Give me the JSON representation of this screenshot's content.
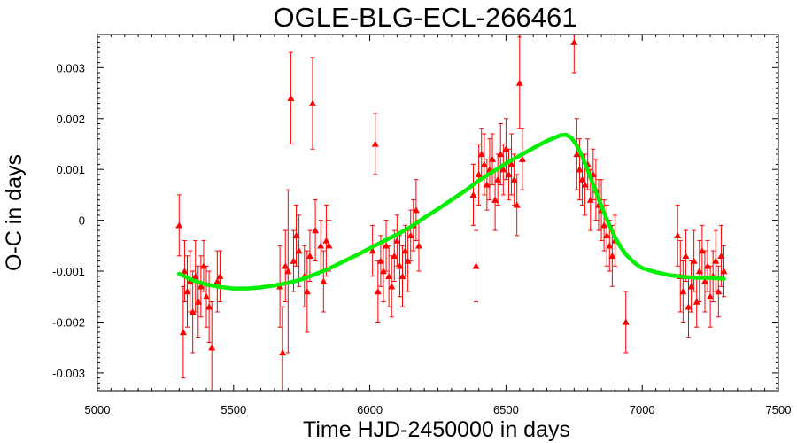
{
  "chart_data": {
    "type": "scatter",
    "title": "OGLE-BLG-ECL-266461",
    "xlabel": "Time HJD-2450000 in days",
    "ylabel": "O-C in days",
    "xlim": [
      5000,
      7500
    ],
    "ylim": [
      -0.00335,
      0.00365
    ],
    "xticks": [
      5000,
      5500,
      6000,
      6500,
      7000,
      7500
    ],
    "xtick_labels": [
      "5000",
      "5500",
      "6000",
      "6500",
      "7000",
      "7500"
    ],
    "yticks": [
      -0.003,
      -0.002,
      -0.001,
      0,
      0.001,
      0.002,
      0.003
    ],
    "ytick_labels": [
      "-0.003",
      "-0.002",
      "-0.001",
      "0",
      "0.001",
      "0.002",
      "0.003"
    ],
    "grid": false,
    "colors": {
      "points": "#ff0000",
      "fit": "#00ee00",
      "frame": "#000000"
    },
    "series": [
      {
        "kind": "points_with_errorbars",
        "marker": "triangle",
        "x": [
          5300,
          5315,
          5320,
          5330,
          5340,
          5350,
          5360,
          5370,
          5380,
          5390,
          5400,
          5410,
          5420,
          5440,
          5450,
          5670,
          5680,
          5690,
          5700,
          5710,
          5720,
          5730,
          5740,
          5760,
          5770,
          5780,
          5790,
          5800,
          5820,
          5830,
          5840,
          5850,
          6010,
          6020,
          6030,
          6040,
          6050,
          6060,
          6070,
          6080,
          6090,
          6100,
          6110,
          6120,
          6130,
          6140,
          6150,
          6160,
          6170,
          6180,
          6380,
          6390,
          6400,
          6410,
          6420,
          6430,
          6440,
          6450,
          6460,
          6470,
          6480,
          6490,
          6500,
          6510,
          6520,
          6530,
          6540,
          6550,
          6560,
          6750,
          6760,
          6770,
          6780,
          6790,
          6800,
          6810,
          6820,
          6830,
          6840,
          6850,
          6860,
          6870,
          6880,
          6890,
          6900,
          6940,
          7130,
          7140,
          7150,
          7160,
          7170,
          7180,
          7190,
          7200,
          7210,
          7220,
          7230,
          7240,
          7250,
          7260,
          7270,
          7280,
          7290,
          7300
        ],
        "y": [
          -0.0001,
          -0.0022,
          -0.001,
          -0.0014,
          -0.0012,
          -0.0018,
          -0.0011,
          -0.0016,
          -0.0013,
          -0.0009,
          -0.0015,
          -0.0017,
          -0.0025,
          -0.0012,
          -0.0011,
          -0.0013,
          -0.0026,
          -0.0009,
          -0.001,
          0.0024,
          -0.0008,
          -0.0003,
          -0.0006,
          -0.0011,
          -0.0014,
          -0.0007,
          0.0023,
          -0.0002,
          -0.0005,
          -0.0012,
          -0.0004,
          -0.0005,
          -0.0006,
          0.0015,
          -0.0014,
          -0.0008,
          -0.001,
          -0.0005,
          -0.0011,
          -0.0013,
          -0.0007,
          -0.0004,
          -0.0009,
          -0.0011,
          -0.0006,
          -0.0008,
          -0.0003,
          -0.0001,
          0.0002,
          -0.0005,
          0.0005,
          -0.0009,
          0.0009,
          0.0013,
          0.0011,
          0.0007,
          0.001,
          0.0012,
          0.0004,
          0.0008,
          0.0013,
          0.001,
          0.0014,
          0.0009,
          0.0011,
          0.0008,
          0.0003,
          0.0027,
          0.0012,
          0.0035,
          0.0013,
          0.001,
          0.0008,
          0.0007,
          0.0011,
          0.0004,
          0.0009,
          0.0006,
          0.0003,
          0.0002,
          -0.0001,
          -0.0003,
          -0.0005,
          -0.0007,
          -0.0004,
          -0.002,
          -0.0003,
          -0.0011,
          -0.0014,
          -0.0007,
          -0.0017,
          -0.0013,
          -0.0008,
          -0.0016,
          -0.001,
          -0.0006,
          -0.0012,
          -0.0009,
          -0.0015,
          -0.0011,
          -0.0008,
          -0.0014,
          -0.0007,
          -0.001
        ],
        "yerr": [
          0.0006,
          0.0009,
          0.0006,
          0.0007,
          0.0006,
          0.0008,
          0.0007,
          0.0007,
          0.0006,
          0.0005,
          0.0006,
          0.0007,
          0.0009,
          0.0006,
          0.0005,
          0.0008,
          0.0009,
          0.0007,
          0.0016,
          0.0009,
          0.0006,
          0.0006,
          0.0007,
          0.0006,
          0.0008,
          0.0005,
          0.0009,
          0.0006,
          0.0005,
          0.0006,
          0.0007,
          0.0005,
          0.0005,
          0.0006,
          0.0006,
          0.0005,
          0.0006,
          0.0005,
          0.0006,
          0.0006,
          0.0005,
          0.0005,
          0.0006,
          0.0006,
          0.0005,
          0.0006,
          0.0005,
          0.0005,
          0.0006,
          0.0005,
          0.0006,
          0.0007,
          0.0006,
          0.0005,
          0.0006,
          0.0005,
          0.0006,
          0.0005,
          0.0006,
          0.0005,
          0.0006,
          0.0005,
          0.0006,
          0.0005,
          0.0006,
          0.0005,
          0.0006,
          0.0009,
          0.0006,
          0.0006,
          0.0007,
          0.0006,
          0.0005,
          0.0006,
          0.0005,
          0.0006,
          0.0005,
          0.0006,
          0.0005,
          0.0006,
          0.0005,
          0.0006,
          0.0005,
          0.0006,
          0.0005,
          0.0006,
          0.0006,
          0.0007,
          0.0006,
          0.0005,
          0.0006,
          0.0005,
          0.0006,
          0.0005,
          0.0006,
          0.0005,
          0.0006,
          0.0005,
          0.0006,
          0.0005,
          0.0006,
          0.0005,
          0.0006,
          0.0005
        ]
      },
      {
        "kind": "fit_curve",
        "x": [
          5300,
          5350,
          5400,
          5450,
          5500,
          5550,
          5600,
          5650,
          5700,
          5750,
          5800,
          5850,
          5900,
          5950,
          6000,
          6050,
          6100,
          6150,
          6200,
          6250,
          6300,
          6350,
          6400,
          6450,
          6500,
          6550,
          6600,
          6650,
          6700,
          6720,
          6740,
          6760,
          6780,
          6800,
          6820,
          6840,
          6860,
          6880,
          6900,
          6920,
          6940,
          6960,
          6980,
          7000,
          7050,
          7100,
          7150,
          7200,
          7250,
          7300
        ],
        "y": [
          -0.00105,
          -0.00118,
          -0.00126,
          -0.00131,
          -0.00134,
          -0.00134,
          -0.00132,
          -0.00128,
          -0.00123,
          -0.00116,
          -0.00106,
          -0.00095,
          -0.00082,
          -0.00069,
          -0.00055,
          -0.00041,
          -0.00028,
          -0.00013,
          5e-05,
          0.00022,
          0.0004,
          0.00058,
          0.00078,
          0.00095,
          0.00112,
          0.00127,
          0.00142,
          0.00156,
          0.00167,
          0.00168,
          0.00162,
          0.00147,
          0.00125,
          0.00098,
          0.0007,
          0.00042,
          0.00015,
          -0.0001,
          -0.00033,
          -0.00052,
          -0.00067,
          -0.00078,
          -0.00087,
          -0.00094,
          -0.00102,
          -0.00108,
          -0.00111,
          -0.00113,
          -0.00113,
          -0.00115
        ]
      }
    ]
  }
}
